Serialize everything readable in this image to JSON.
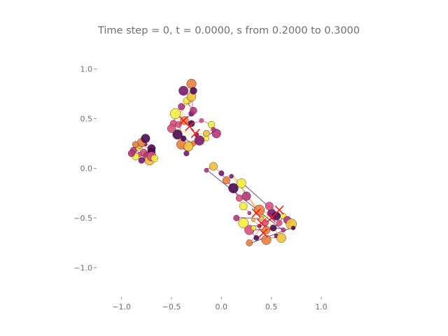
{
  "chart_data": {
    "type": "scatter",
    "title": "Time step = 0, t = 0.0000, s from 0.2000 to 0.3000",
    "xlabel": "",
    "ylabel": "",
    "xlim": [
      -1.25,
      1.4
    ],
    "ylim": [
      -1.25,
      1.2
    ],
    "xticks": [
      -1.0,
      -0.5,
      0.0,
      0.5,
      1.0
    ],
    "xtick_labels": [
      "−1.0",
      "−0.5",
      "0.0",
      "0.5",
      "1.0"
    ],
    "yticks": [
      1.0,
      0.5,
      0.0,
      -0.5,
      -1.0
    ],
    "ytick_labels": [
      "1.0",
      "0.5",
      "0.0",
      "−0.5",
      "−1.0"
    ],
    "grid": false,
    "legend": "none",
    "colormap": [
      "#4a0c4e",
      "#7a1a6e",
      "#b5367a",
      "#d9537a",
      "#e8823c",
      "#f0c23b",
      "#f5f03c"
    ],
    "marker_color": "#ff1a1a",
    "series": [
      {
        "clusters": [
          {
            "points": [
              [
                -0.7,
                0.17
              ],
              [
                -0.78,
                0.16
              ],
              [
                -0.84,
                0.2
              ],
              [
                -0.88,
                0.18
              ],
              [
                -0.82,
                0.22
              ],
              [
                -0.76,
                0.24
              ],
              [
                -0.8,
                0.26
              ],
              [
                -0.76,
                0.3
              ],
              [
                -0.82,
                0.14
              ],
              [
                -0.86,
                0.12
              ],
              [
                -0.74,
                0.12
              ],
              [
                -0.72,
                0.08
              ],
              [
                -0.8,
                0.08
              ],
              [
                -0.86,
                0.24
              ],
              [
                -0.7,
                0.2
              ],
              [
                -0.7,
                0.12
              ],
              [
                -0.67,
                0.1
              ],
              [
                -0.9,
                0.15
              ]
            ],
            "markers": []
          },
          {
            "points": [
              [
                -0.35,
                0.15
              ],
              [
                -0.4,
                0.24
              ],
              [
                -0.44,
                0.34
              ],
              [
                -0.48,
                0.45
              ],
              [
                -0.46,
                0.55
              ],
              [
                -0.4,
                0.62
              ],
              [
                -0.33,
                0.68
              ],
              [
                -0.3,
                0.55
              ],
              [
                -0.37,
                0.48
              ],
              [
                -0.3,
                0.45
              ],
              [
                -0.2,
                0.48
              ],
              [
                -0.1,
                0.44
              ],
              [
                -0.05,
                0.35
              ],
              [
                -0.15,
                0.35
              ],
              [
                -0.25,
                0.34
              ],
              [
                -0.28,
                0.25
              ],
              [
                -0.38,
                0.3
              ],
              [
                -0.43,
                0.44
              ],
              [
                -0.35,
                0.68
              ],
              [
                -0.28,
                0.58
              ],
              [
                -0.3,
                0.72
              ],
              [
                -0.38,
                0.78
              ],
              [
                -0.3,
                0.85
              ],
              [
                -0.28,
                0.78
              ],
              [
                -0.5,
                0.4
              ],
              [
                -0.15,
                0.3
              ],
              [
                -0.08,
                0.39
              ],
              [
                -0.33,
                0.22
              ],
              [
                -0.22,
                0.28
              ]
            ],
            "markers": [
              [
                -0.38,
                0.48
              ],
              [
                -0.32,
                0.42
              ],
              [
                -0.26,
                0.35
              ]
            ]
          },
          {
            "points": [
              [
                -0.15,
                -0.02
              ],
              [
                -0.08,
                0.02
              ],
              [
                0.0,
                -0.05
              ],
              [
                0.05,
                -0.12
              ],
              [
                0.12,
                -0.2
              ],
              [
                0.18,
                -0.3
              ],
              [
                0.22,
                -0.38
              ],
              [
                0.28,
                -0.45
              ],
              [
                0.32,
                -0.52
              ],
              [
                0.38,
                -0.58
              ],
              [
                0.45,
                -0.62
              ],
              [
                0.52,
                -0.6
              ],
              [
                0.58,
                -0.55
              ],
              [
                0.62,
                -0.48
              ],
              [
                0.66,
                -0.52
              ],
              [
                0.7,
                -0.56
              ],
              [
                0.55,
                -0.68
              ],
              [
                0.45,
                -0.72
              ],
              [
                0.35,
                -0.7
              ],
              [
                0.28,
                -0.62
              ],
              [
                0.22,
                -0.55
              ],
              [
                0.15,
                -0.5
              ],
              [
                0.4,
                -0.5
              ],
              [
                0.5,
                -0.45
              ],
              [
                0.28,
                -0.75
              ],
              [
                0.72,
                -0.6
              ],
              [
                0.48,
                -0.38
              ],
              [
                0.2,
                -0.15
              ],
              [
                0.25,
                -0.28
              ],
              [
                0.6,
                -0.7
              ],
              [
                0.1,
                -0.08
              ],
              [
                0.38,
                -0.42
              ],
              [
                0.55,
                -0.48
              ],
              [
                0.44,
                -0.55
              ],
              [
                0.32,
                -0.6
              ],
              [
                0.62,
                -0.62
              ]
            ],
            "markers": [
              [
                0.35,
                -0.45
              ],
              [
                0.4,
                -0.55
              ],
              [
                0.5,
                -0.5
              ],
              [
                0.58,
                -0.42
              ],
              [
                0.42,
                -0.65
              ]
            ]
          }
        ]
      }
    ]
  }
}
